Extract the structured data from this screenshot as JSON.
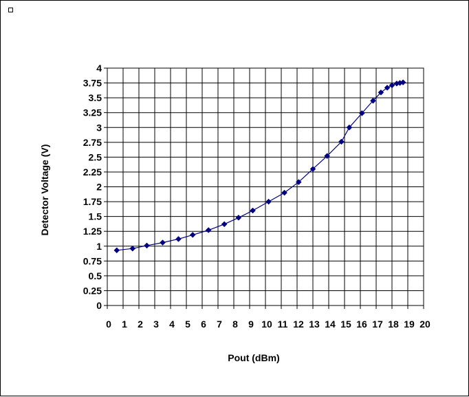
{
  "chart_data": {
    "type": "line",
    "title": "",
    "xlabel": "Pout (dBm)",
    "ylabel": "Detector Voltage (V)",
    "xlim": [
      0,
      20
    ],
    "ylim": [
      0,
      4
    ],
    "grid": true,
    "legend": "none",
    "x_ticks": [
      "0",
      "1",
      "2",
      "3",
      "4",
      "5",
      "6",
      "7",
      "8",
      "9",
      "10",
      "11",
      "12",
      "13",
      "14",
      "15",
      "16",
      "17",
      "18",
      "19",
      "20"
    ],
    "y_ticks": [
      "0",
      "0.25",
      "0.5",
      "0.75",
      "1",
      "1.25",
      "1.5",
      "1.75",
      "2",
      "2.25",
      "2.5",
      "2.75",
      "3",
      "3.25",
      "3.5",
      "3.75",
      "4"
    ],
    "series": [
      {
        "color": "#000080",
        "marker": "diamond",
        "x": [
          0.6,
          1.6,
          2.5,
          3.5,
          4.5,
          5.4,
          6.4,
          7.4,
          8.3,
          9.2,
          10.2,
          11.2,
          12.1,
          13.0,
          13.9,
          14.8,
          15.3,
          16.1,
          16.8,
          17.3,
          17.7,
          18.0,
          18.3,
          18.5,
          18.7
        ],
        "y": [
          0.93,
          0.96,
          1.01,
          1.06,
          1.12,
          1.19,
          1.27,
          1.37,
          1.48,
          1.6,
          1.75,
          1.9,
          2.08,
          2.3,
          2.52,
          2.76,
          3.0,
          3.24,
          3.45,
          3.59,
          3.67,
          3.71,
          3.74,
          3.75,
          3.76
        ]
      }
    ]
  }
}
